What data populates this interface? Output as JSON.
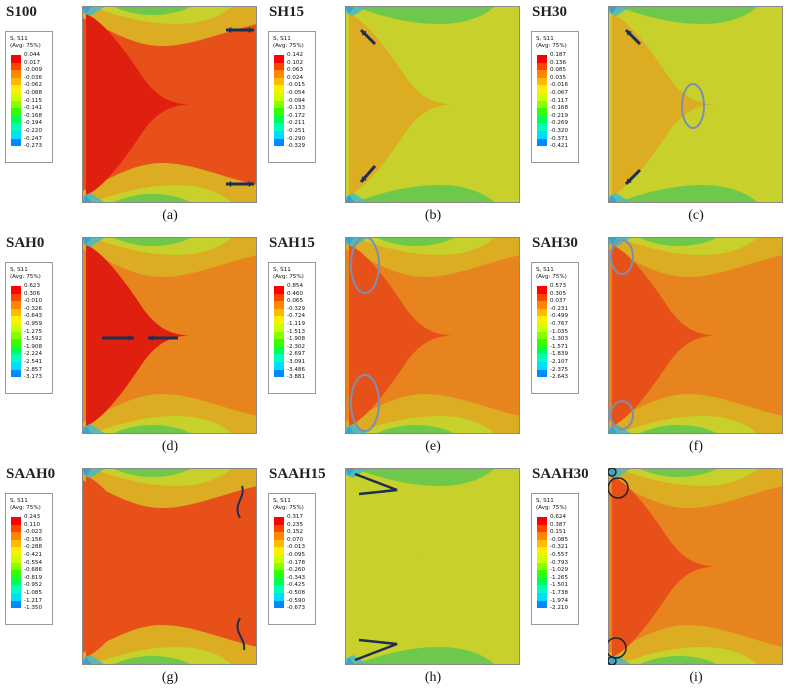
{
  "colors": {
    "red": "#e0200f",
    "redorange": "#e8501a",
    "orange": "#e8841e",
    "amber": "#dcac22",
    "yellowgreen": "#c8d02c",
    "green": "#6ec84c",
    "cyan": "#3cbad2",
    "blue": "#2246d2",
    "annotation": "#1e2e52",
    "ellipse": "#7d8fae"
  },
  "legend_palette": [
    "#ff0000",
    "#ff4400",
    "#ff8800",
    "#ffbb00",
    "#ffee00",
    "#ccff00",
    "#88ff00",
    "#33ff00",
    "#00ff55",
    "#00ffbb",
    "#00ddff",
    "#0088ff",
    "#0000ff"
  ],
  "panels": [
    {
      "title": "S100",
      "caption": "(a)",
      "legend": {
        "header1": "S, S11",
        "header2": "(Avg: 75%)",
        "values": [
          "0.044",
          "0.017",
          "-0.009",
          "-0.036",
          "-0.062",
          "-0.088",
          "-0.115",
          "-0.141",
          "-0.168",
          "-0.194",
          "-0.220",
          "-0.247",
          "-0.273"
        ]
      }
    },
    {
      "title": "SH15",
      "caption": "(b)",
      "legend": {
        "header1": "S, S11",
        "header2": "(Avg: 75%)",
        "values": [
          "0.142",
          "0.102",
          "0.063",
          "0.024",
          "-0.015",
          "-0.054",
          "-0.094",
          "-0.133",
          "-0.172",
          "-0.211",
          "-0.251",
          "-0.290",
          "-0.329"
        ]
      }
    },
    {
      "title": "SH30",
      "caption": "(c)",
      "legend": {
        "header1": "S, S11",
        "header2": "(Avg: 75%)",
        "values": [
          "0.187",
          "0.136",
          "0.085",
          "0.035",
          "-0.016",
          "-0.067",
          "-0.117",
          "-0.168",
          "-0.219",
          "-0.269",
          "-0.320",
          "-0.371",
          "-0.421"
        ]
      }
    },
    {
      "title": "SAH0",
      "caption": "(d)",
      "legend": {
        "header1": "S, S11",
        "header2": "(Avg: 75%)",
        "values": [
          "0.623",
          "0.306",
          "-0.010",
          "-0.326",
          "-0.643",
          "-0.959",
          "-1.275",
          "-1.592",
          "-1.908",
          "-2.224",
          "-2.541",
          "-2.857",
          "-3.173"
        ]
      }
    },
    {
      "title": "SAH15",
      "caption": "(e)",
      "legend": {
        "header1": "S, S11",
        "header2": "(Avg: 75%)",
        "values": [
          "0.854",
          "0.460",
          "0.065",
          "-0.329",
          "-0.724",
          "-1.119",
          "-1.513",
          "-1.908",
          "-2.302",
          "-2.697",
          "-3.091",
          "-3.486",
          "-3.881"
        ]
      }
    },
    {
      "title": "SAH30",
      "caption": "(f)",
      "legend": {
        "header1": "S, S11",
        "header2": "(Avg: 75%)",
        "values": [
          "0.573",
          "0.305",
          "0.037",
          "-0.231",
          "-0.499",
          "-0.767",
          "-1.035",
          "-1.303",
          "-1.571",
          "-1.839",
          "-2.107",
          "-2.375",
          "-2.643"
        ]
      }
    },
    {
      "title": "SAAH0",
      "caption": "(g)",
      "legend": {
        "header1": "S, S11",
        "header2": "(Avg: 75%)",
        "values": [
          "0.243",
          "0.110",
          "-0.023",
          "-0.156",
          "-0.288",
          "-0.421",
          "-0.554",
          "-0.686",
          "-0.819",
          "-0.952",
          "-1.085",
          "-1.217",
          "-1.350"
        ]
      }
    },
    {
      "title": "SAAH15",
      "caption": "(h)",
      "legend": {
        "header1": "S, S11",
        "header2": "(Avg: 75%)",
        "values": [
          "0.317",
          "0.235",
          "0.152",
          "0.070",
          "-0.013",
          "-0.095",
          "-0.178",
          "-0.260",
          "-0.343",
          "-0.425",
          "-0.508",
          "-0.590",
          "-0.673"
        ]
      }
    },
    {
      "title": "SAAH30",
      "caption": "(i)",
      "legend": {
        "header1": "S, S11",
        "header2": "(Avg: 75%)",
        "values": [
          "0.624",
          "0.387",
          "0.151",
          "-0.085",
          "-0.321",
          "-0.557",
          "-0.793",
          "-1.029",
          "-1.265",
          "-1.501",
          "-1.738",
          "-1.974",
          "-2.210"
        ]
      }
    }
  ]
}
